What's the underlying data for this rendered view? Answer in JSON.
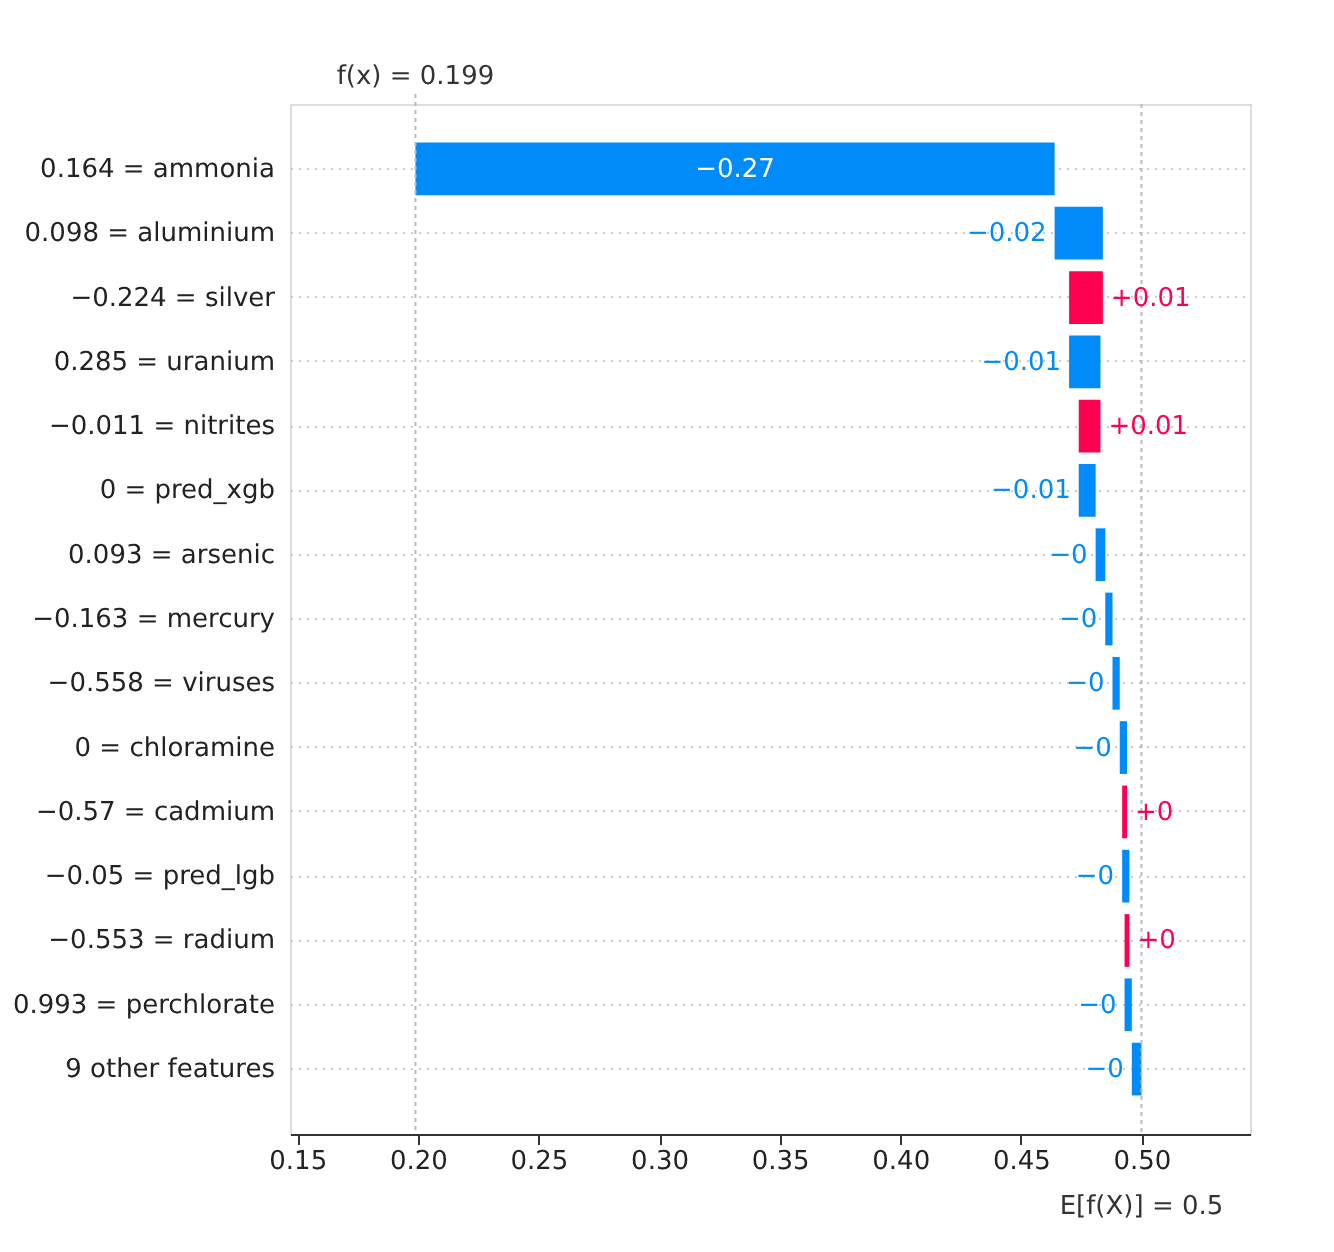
{
  "chart_data": {
    "type": "bar",
    "orientation": "horizontal",
    "categories": [
      "0.164 = ammonia",
      "0.098 = aluminium",
      "−0.224 = silver",
      "0.285 = uranium",
      "−0.011 = nitrites",
      "0 = pred_xgb",
      "0.093 = arsenic",
      "−0.163 = mercury",
      "−0.558 = viruses",
      "0 = chloramine",
      "−0.57 = cadmium",
      "−0.05 = pred_lgb",
      "−0.553 = radium",
      "0.993 = perchlorate",
      "9 other features"
    ],
    "base": [
      0.464,
      0.484,
      0.47,
      0.483,
      0.474,
      0.481,
      0.485,
      0.488,
      0.491,
      0.494,
      0.492,
      0.495,
      0.493,
      0.496,
      0.5
    ],
    "values": [
      -0.265,
      -0.02,
      0.014,
      -0.013,
      0.009,
      -0.007,
      -0.004,
      -0.003,
      -0.003,
      -0.003,
      0.002,
      -0.003,
      0.002,
      -0.003,
      -0.004
    ],
    "colors": [
      "#008bfb",
      "#008bfb",
      "#ff0051",
      "#008bfb",
      "#ff0051",
      "#008bfb",
      "#008bfb",
      "#008bfb",
      "#008bfb",
      "#008bfb",
      "#ff0051",
      "#008bfb",
      "#ff0051",
      "#008bfb",
      "#008bfb"
    ],
    "value_labels": [
      "−0.27",
      "−0.02",
      "+0.01",
      "−0.01",
      "+0.01",
      "−0.01",
      "−0",
      "−0",
      "−0",
      "−0",
      "+0",
      "−0",
      "+0",
      "−0",
      "−0"
    ],
    "xlim": [
      0.147,
      0.545
    ],
    "xticks": [
      {
        "value": 0.15,
        "label": "0.15"
      },
      {
        "value": 0.2,
        "label": "0.20"
      },
      {
        "value": 0.25,
        "label": "0.25"
      },
      {
        "value": 0.3,
        "label": "0.30"
      },
      {
        "value": 0.35,
        "label": "0.35"
      },
      {
        "value": 0.4,
        "label": "0.40"
      },
      {
        "value": 0.45,
        "label": "0.45"
      },
      {
        "value": 0.5,
        "label": "0.50"
      }
    ],
    "ref_lines": [
      {
        "axis": "x",
        "value": 0.199,
        "label": "f(x) = 0.199",
        "color": "#bbbbbb",
        "line_style": "dotted"
      },
      {
        "axis": "x",
        "value": 0.5,
        "label": "E[f(X)] = 0.5",
        "color": "#bbbbbb",
        "line_style": "dotted"
      }
    ],
    "grid": "y",
    "legend": false
  }
}
